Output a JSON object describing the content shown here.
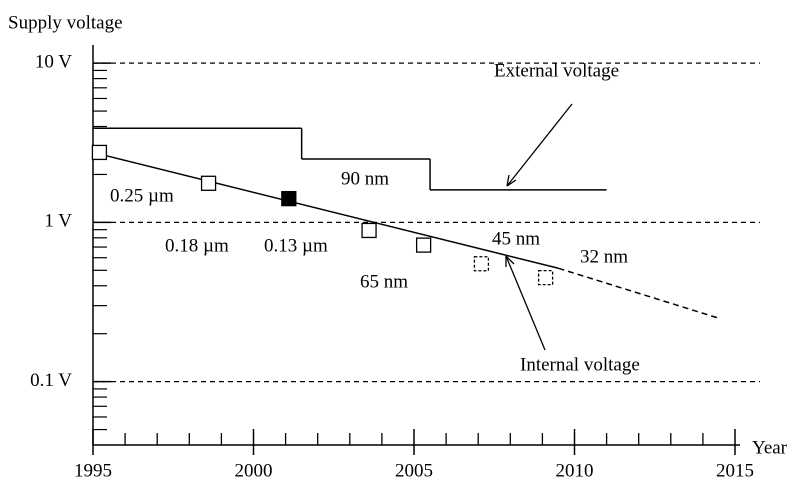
{
  "chart_data": {
    "type": "line",
    "ylabel": "Supply voltage",
    "xlabel": "Year",
    "log_y": true,
    "xlim": [
      1995,
      2015
    ],
    "ylim": [
      0.04,
      13
    ],
    "xticks": [
      1995,
      2000,
      2005,
      2010,
      2015
    ],
    "xminorticks": [
      1996,
      1997,
      1998,
      1999,
      2001,
      2002,
      2003,
      2004,
      2006,
      2007,
      2008,
      2009,
      2011,
      2012,
      2013,
      2014
    ],
    "yticks": [
      {
        "value": 10,
        "label": "10 V"
      },
      {
        "value": 1,
        "label": "1 V"
      },
      {
        "value": 0.1,
        "label": "0.1 V"
      }
    ],
    "yminorticks": [
      0.05,
      0.06,
      0.07,
      0.08,
      0.09,
      0.2,
      0.3,
      0.4,
      0.5,
      0.6,
      0.7,
      0.8,
      0.9,
      2,
      3,
      4,
      5,
      6,
      7,
      8,
      9
    ],
    "grid": true,
    "series": [
      {
        "name": "External voltage",
        "color": "#000000",
        "x": [
          1995,
          2001.5,
          2001.5,
          2005.5,
          2005.5,
          2011
        ],
        "values": [
          3.9,
          3.9,
          2.5,
          2.5,
          1.6,
          1.6
        ],
        "segment_styles": [
          "solid",
          "solid",
          "solid",
          "solid",
          "solid"
        ]
      },
      {
        "name": "Internal voltage",
        "color": "#000000",
        "x": [
          1995,
          2009.5,
          2014.5
        ],
        "values": [
          2.75,
          0.515,
          0.25
        ],
        "segment_styles": [
          "solid",
          "dashed"
        ]
      }
    ],
    "markers": [
      {
        "fill": "#ffffff",
        "dashed": false,
        "x": [
          1995.2,
          1998.6,
          2003.6,
          2005.3
        ],
        "values": [
          2.75,
          1.76,
          0.89,
          0.72
        ]
      },
      {
        "fill": "#000000",
        "dashed": false,
        "x": [
          2001.1
        ],
        "values": [
          1.41
        ]
      },
      {
        "fill": "#ffffff",
        "dashed": true,
        "x": [
          2007.1,
          2009.1
        ],
        "values": [
          0.55,
          0.45
        ]
      }
    ],
    "annotations": [
      "0.25 µm",
      "0.18 µm",
      "0.13 µm",
      "90 nm",
      "65 nm",
      "45 nm",
      "32 nm"
    ]
  }
}
